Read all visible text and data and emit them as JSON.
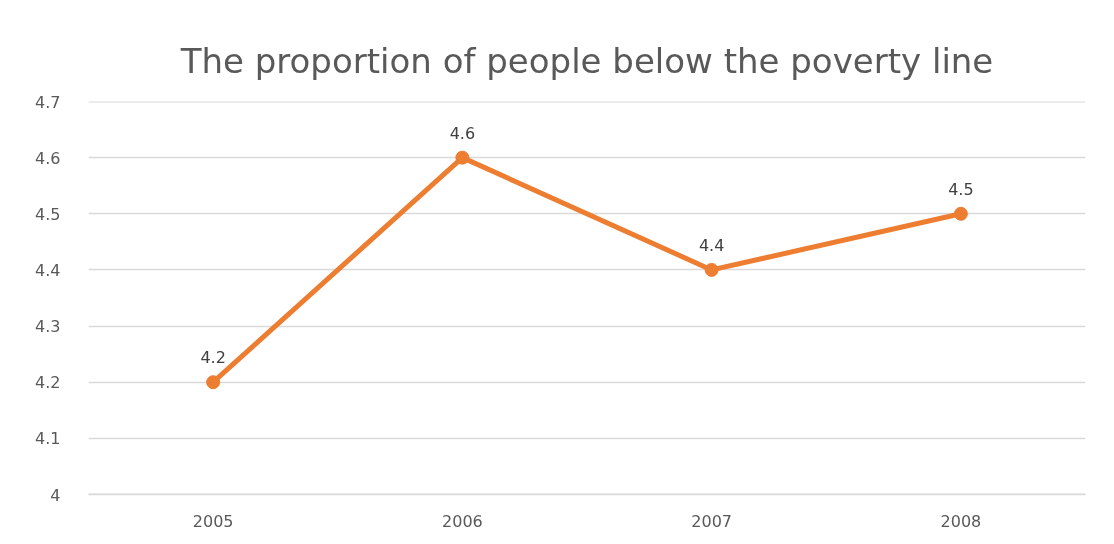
{
  "chart_data": {
    "type": "line",
    "title": "The proportion of people below the poverty line",
    "categories": [
      "2005",
      "2006",
      "2007",
      "2008"
    ],
    "values": [
      4.2,
      4.6,
      4.4,
      4.5
    ],
    "color": "#ed7d31",
    "ylim": [
      4,
      4.7
    ],
    "yticks": [
      4,
      4.1,
      4.2,
      4.3,
      4.4,
      4.5,
      4.6,
      4.7
    ],
    "grid": "y",
    "data_labels": true,
    "marker": "circle"
  }
}
